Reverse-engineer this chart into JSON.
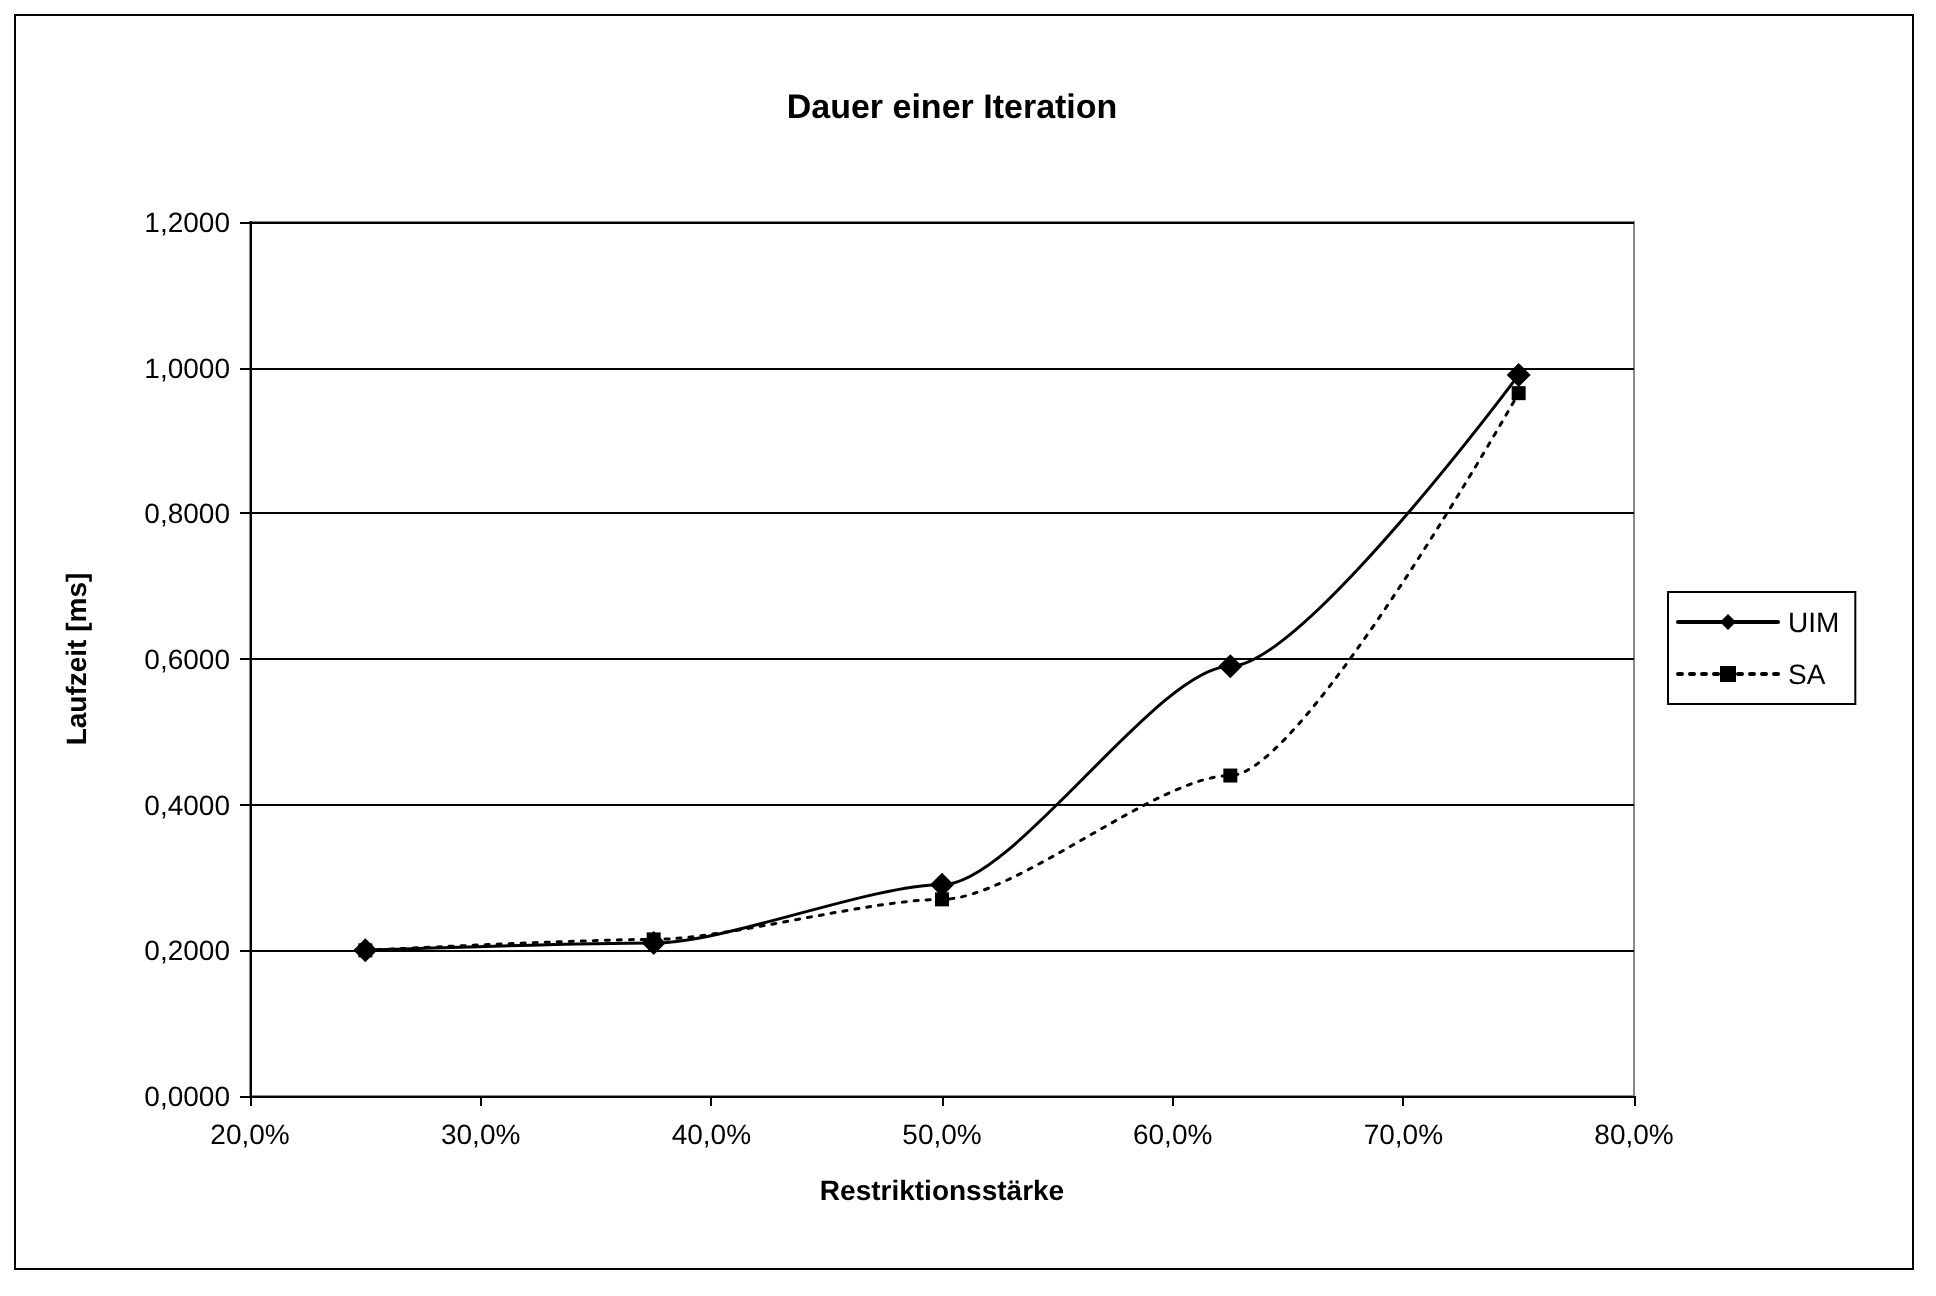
{
  "chart_data": {
    "type": "line",
    "title": "Dauer einer Iteration",
    "xlabel": "Restriktionsstärke",
    "ylabel": "Laufzeit [ms]",
    "x": [
      25,
      37.5,
      50,
      62.5,
      75
    ],
    "series": [
      {
        "name": "UIM",
        "color": "#000000",
        "marker": "diamond",
        "line_style": "solid",
        "values": [
          0.2,
          0.21,
          0.29,
          0.59,
          0.99
        ]
      },
      {
        "name": "SA",
        "color": "#000000",
        "marker": "square",
        "line_style": "dotted",
        "values": [
          0.2,
          0.215,
          0.27,
          0.44,
          0.965
        ]
      }
    ],
    "xlim": [
      20,
      80
    ],
    "xticks": [
      {
        "value": 20,
        "label": "20,0%"
      },
      {
        "value": 30,
        "label": "30,0%"
      },
      {
        "value": 40,
        "label": "40,0%"
      },
      {
        "value": 50,
        "label": "50,0%"
      },
      {
        "value": 60,
        "label": "60,0%"
      },
      {
        "value": 70,
        "label": "70,0%"
      },
      {
        "value": 80,
        "label": "80,0%"
      }
    ],
    "ylim": [
      0,
      1.2
    ],
    "yticks": [
      {
        "value": 0,
        "label": "0,0000"
      },
      {
        "value": 0.2,
        "label": "0,2000"
      },
      {
        "value": 0.4,
        "label": "0,4000"
      },
      {
        "value": 0.6,
        "label": "0,6000"
      },
      {
        "value": 0.8,
        "label": "0,8000"
      },
      {
        "value": 1,
        "label": "1,0000"
      },
      {
        "value": 1.2,
        "label": "1,2000"
      }
    ],
    "grid": "y",
    "legend": "right"
  }
}
